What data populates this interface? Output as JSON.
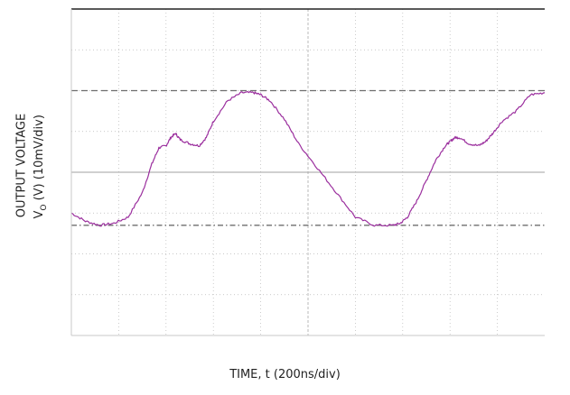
{
  "chart_data": {
    "type": "line",
    "title": "",
    "xlabel": "TIME, t (200ns/div)",
    "ylabel_line1": "OUTPUT VOLTAGE",
    "ylabel_line2_prefix": "V",
    "ylabel_line2_sub": "O",
    "ylabel_line2_suffix": " (V) (10mV/div)",
    "x_divisions": 10,
    "y_divisions": 8,
    "xlim": [
      0,
      10
    ],
    "ylim": [
      -4,
      4
    ],
    "grid": true,
    "reference_levels": [
      {
        "name": "upper-reference",
        "y": 2.0,
        "style": "dashed"
      },
      {
        "name": "lower-reference",
        "y": -1.3,
        "style": "dash-dot"
      }
    ],
    "colors": {
      "trace": "#9b2f9e",
      "grid": "#b8b8b8",
      "frame": "#222222"
    },
    "series": [
      {
        "x": [
          0.0,
          0.3,
          0.6,
          0.9,
          1.2,
          1.5,
          1.7,
          1.85,
          2.0,
          2.1,
          2.2,
          2.3,
          2.5,
          2.7,
          2.85,
          3.0,
          3.3,
          3.6,
          3.85,
          4.0,
          4.2,
          4.5,
          4.8,
          5.2,
          5.6,
          6.0,
          6.4,
          6.8,
          6.95,
          7.1,
          7.3,
          7.5,
          7.7,
          7.9,
          8.0,
          8.1,
          8.2,
          8.4,
          8.6,
          8.75,
          8.9,
          9.1,
          9.4,
          9.7,
          10.0
        ],
        "values": [
          -1.0,
          -1.2,
          -1.3,
          -1.25,
          -1.1,
          -0.5,
          0.2,
          0.6,
          0.65,
          0.85,
          0.95,
          0.8,
          0.7,
          0.65,
          0.85,
          1.25,
          1.75,
          1.95,
          1.95,
          1.9,
          1.75,
          1.3,
          0.7,
          0.1,
          -0.5,
          -1.1,
          -1.3,
          -1.3,
          -1.25,
          -1.1,
          -0.7,
          -0.2,
          0.3,
          0.65,
          0.75,
          0.85,
          0.85,
          0.7,
          0.65,
          0.75,
          0.95,
          1.25,
          1.5,
          1.9,
          1.95
        ]
      }
    ]
  }
}
